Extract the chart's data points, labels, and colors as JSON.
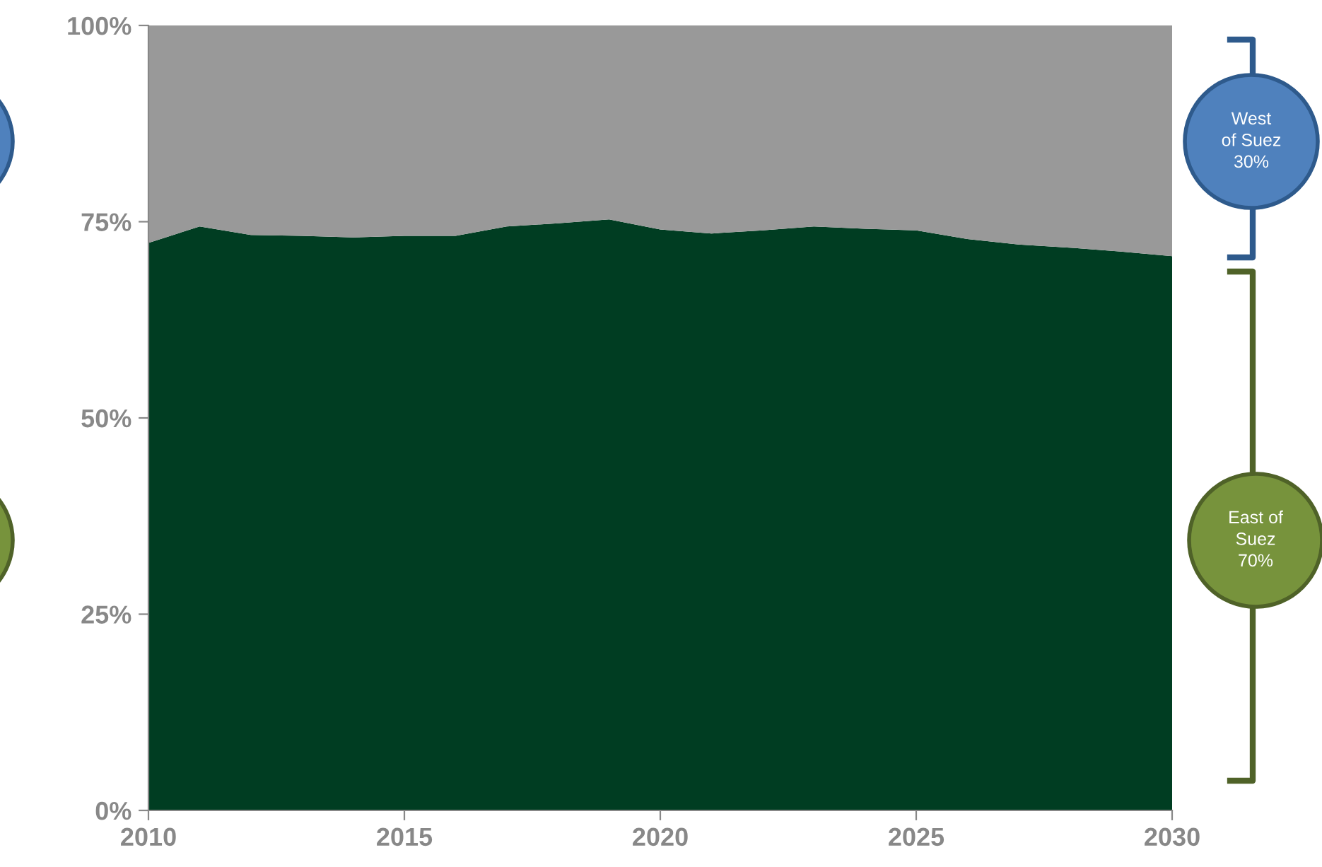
{
  "chart_data": {
    "type": "area",
    "stacked": true,
    "x": [
      2010,
      2011,
      2012,
      2013,
      2014,
      2015,
      2016,
      2017,
      2018,
      2019,
      2020,
      2021,
      2022,
      2023,
      2024,
      2025,
      2026,
      2027,
      2028,
      2029,
      2030
    ],
    "series": [
      {
        "color": "#003d22",
        "values": [
          72.3,
          74.4,
          73.3,
          73.2,
          73.0,
          73.2,
          73.2,
          74.4,
          74.8,
          75.3,
          74.0,
          73.5,
          73.9,
          74.4,
          74.1,
          73.9,
          72.8,
          72.1,
          71.7,
          71.2,
          70.6
        ]
      },
      {
        "color": "#999999",
        "values": [
          27.7,
          25.6,
          26.7,
          26.8,
          27.0,
          26.8,
          26.8,
          25.6,
          25.2,
          24.7,
          26.0,
          26.5,
          26.1,
          25.6,
          25.9,
          26.1,
          27.2,
          27.9,
          28.3,
          28.8,
          29.4
        ]
      }
    ],
    "xlim": [
      2010,
      2030
    ],
    "xticks": [
      2010,
      2015,
      2020,
      2025,
      2030
    ],
    "ylim": [
      0,
      100
    ],
    "yticks": [
      {
        "value": 0,
        "label": "0%"
      },
      {
        "value": 25,
        "label": "25%"
      },
      {
        "value": 50,
        "label": "50%"
      },
      {
        "value": 75,
        "label": "75%"
      },
      {
        "value": 100,
        "label": "100%"
      }
    ],
    "grid": false,
    "legend": false,
    "annotations": [
      "West\nof Suez\n30%",
      "East of\nSuez\n70%"
    ]
  }
}
